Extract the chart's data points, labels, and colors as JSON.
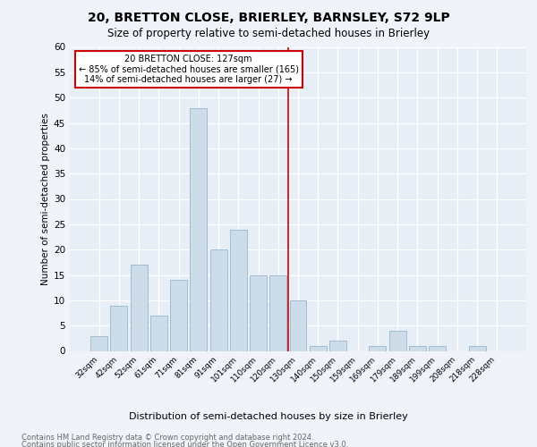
{
  "title": "20, BRETTON CLOSE, BRIERLEY, BARNSLEY, S72 9LP",
  "subtitle": "Size of property relative to semi-detached houses in Brierley",
  "xlabel": "Distribution of semi-detached houses by size in Brierley",
  "ylabel": "Number of semi-detached properties",
  "categories": [
    "32sqm",
    "42sqm",
    "52sqm",
    "61sqm",
    "71sqm",
    "81sqm",
    "91sqm",
    "101sqm",
    "110sqm",
    "120sqm",
    "130sqm",
    "140sqm",
    "150sqm",
    "159sqm",
    "169sqm",
    "179sqm",
    "189sqm",
    "199sqm",
    "208sqm",
    "218sqm",
    "228sqm"
  ],
  "values": [
    3,
    9,
    17,
    7,
    14,
    48,
    20,
    24,
    15,
    15,
    10,
    1,
    2,
    0,
    1,
    4,
    1,
    1,
    0,
    1,
    0
  ],
  "bar_color": "#ccdce9",
  "bar_edge_color": "#a0bcd4",
  "ylim": [
    0,
    60
  ],
  "yticks": [
    0,
    5,
    10,
    15,
    20,
    25,
    30,
    35,
    40,
    45,
    50,
    55,
    60
  ],
  "vline_color": "#cc0000",
  "annotation_title": "20 BRETTON CLOSE: 127sqm",
  "annotation_line1": "← 85% of semi-detached houses are smaller (165)",
  "annotation_line2": "14% of semi-detached houses are larger (27) →",
  "annotation_box_color": "#cc0000",
  "footer_line1": "Contains HM Land Registry data © Crown copyright and database right 2024.",
  "footer_line2": "Contains public sector information licensed under the Open Government Licence v3.0.",
  "fig_background": "#f0f4fa",
  "plot_background": "#e8eef6"
}
